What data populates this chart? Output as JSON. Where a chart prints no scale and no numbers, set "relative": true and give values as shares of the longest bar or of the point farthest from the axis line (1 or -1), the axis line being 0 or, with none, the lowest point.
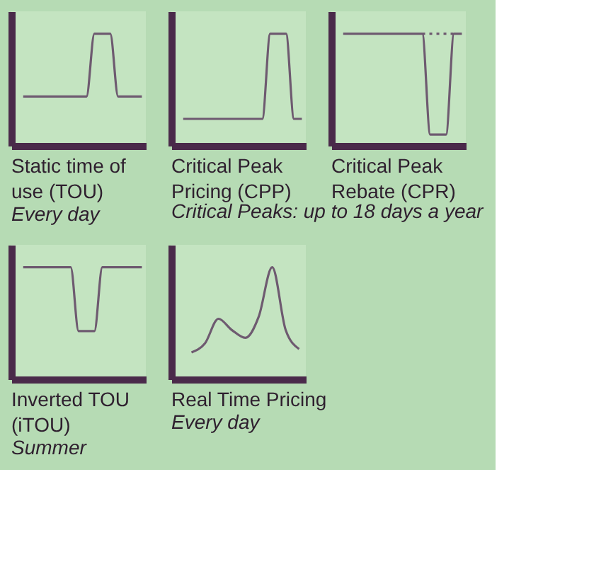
{
  "chart_data": [
    {
      "type": "line",
      "relative": true,
      "title": "Static time of\nuse (TOU)",
      "subtitle": "Every day",
      "categories": [
        null,
        null,
        null,
        null,
        null,
        null,
        null,
        null,
        null,
        null,
        null,
        null,
        null,
        null,
        null,
        null
      ],
      "series": [
        {
          "color": "#6e5a70",
          "values": [
            0.44,
            0.44,
            0.44,
            0.44,
            0.44,
            0.44,
            0.44,
            0.44,
            0.44,
            1,
            1,
            1,
            0.44,
            0.44,
            0.44,
            0.44
          ]
        }
      ]
    },
    {
      "type": "line",
      "relative": true,
      "title": "Critical Peak\nPricing (CPP)",
      "annotations": [
        "Critical Peaks: up to 18 days a year"
      ],
      "categories": [
        null,
        null,
        null,
        null,
        null,
        null,
        null,
        null,
        null,
        null,
        null,
        null,
        null,
        null,
        null,
        null
      ],
      "series": [
        {
          "color": "#6e5a70",
          "values": [
            0.24,
            0.24,
            0.24,
            0.24,
            0.24,
            0.24,
            0.24,
            0.24,
            0.24,
            0.24,
            0.24,
            1,
            1,
            1,
            0.24,
            0.24
          ]
        }
      ]
    },
    {
      "type": "line",
      "relative": true,
      "title": "Critical Peak\nRebate (CPR)",
      "categories": [
        null,
        null,
        null,
        null,
        null,
        null,
        null,
        null,
        null,
        null,
        null,
        null,
        null,
        null,
        null,
        null
      ],
      "series": [
        {
          "color": "#6e5a70",
          "values": [
            1,
            1,
            1,
            1,
            1,
            1,
            1,
            1,
            1,
            1,
            1,
            0.1,
            0.1,
            0.1,
            1,
            1
          ]
        },
        {
          "color": "#6e5a70",
          "line_style": "dotted",
          "values": [
            null,
            null,
            null,
            null,
            null,
            null,
            null,
            null,
            null,
            null,
            1,
            1,
            1,
            1,
            1,
            null
          ]
        }
      ]
    },
    {
      "type": "line",
      "relative": true,
      "title": "Inverted TOU\n(iTOU)",
      "subtitle": "Summer",
      "categories": [
        null,
        null,
        null,
        null,
        null,
        null,
        null,
        null,
        null,
        null,
        null,
        null,
        null,
        null,
        null,
        null
      ],
      "series": [
        {
          "color": "#6e5a70",
          "values": [
            1,
            1,
            1,
            1,
            1,
            1,
            1,
            0.43,
            0.43,
            0.43,
            1,
            1,
            1,
            1,
            1,
            1
          ]
        }
      ]
    },
    {
      "type": "line",
      "relative": true,
      "title": "Real Time Pricing",
      "subtitle": "Every day",
      "categories": [
        null,
        null,
        null,
        null,
        null,
        null,
        null,
        null,
        null
      ],
      "series": [
        {
          "color": "#6e5a70",
          "values": [
            0.24,
            0.32,
            0.54,
            0.44,
            0.37,
            0.56,
            1.0,
            0.44,
            0.27
          ]
        }
      ]
    }
  ]
}
